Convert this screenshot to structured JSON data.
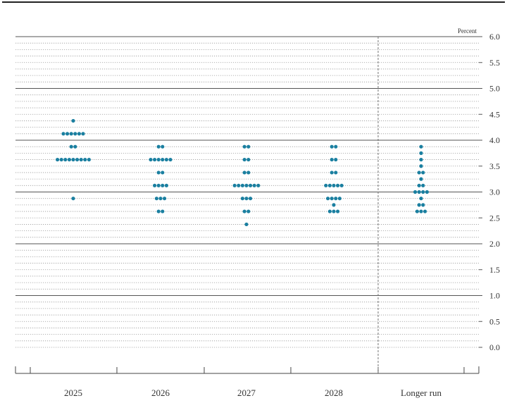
{
  "chart_data": {
    "type": "scatter",
    "subtype": "dot-plot",
    "unit_label": "Percent",
    "categories": [
      "2025",
      "2026",
      "2027",
      "2028",
      "Longer run"
    ],
    "ylim": [
      0,
      6
    ],
    "y_ticks": [
      "0.0",
      "0.5",
      "1.0",
      "1.5",
      "2.0",
      "2.5",
      "3.0",
      "3.5",
      "4.0",
      "4.5",
      "5.0",
      "5.5",
      "6.0"
    ],
    "major_gridlines": [
      1,
      2,
      3,
      4,
      5,
      6
    ],
    "minor_gridlines": "dotted every 0.125",
    "separator_before": "Longer run",
    "dot_color": "#1a7fa0",
    "series": [
      {
        "category": "2025",
        "dots": [
          {
            "y": 4.375,
            "n": 1
          },
          {
            "y": 4.125,
            "n": 6
          },
          {
            "y": 3.875,
            "n": 2
          },
          {
            "y": 3.625,
            "n": 9
          },
          {
            "y": 2.875,
            "n": 1
          }
        ]
      },
      {
        "category": "2026",
        "dots": [
          {
            "y": 3.875,
            "n": 2
          },
          {
            "y": 3.625,
            "n": 6
          },
          {
            "y": 3.375,
            "n": 2
          },
          {
            "y": 3.125,
            "n": 4
          },
          {
            "y": 2.875,
            "n": 3
          },
          {
            "y": 2.625,
            "n": 2
          }
        ]
      },
      {
        "category": "2027",
        "dots": [
          {
            "y": 3.875,
            "n": 2
          },
          {
            "y": 3.625,
            "n": 2
          },
          {
            "y": 3.375,
            "n": 2
          },
          {
            "y": 3.125,
            "n": 7
          },
          {
            "y": 2.875,
            "n": 3
          },
          {
            "y": 2.625,
            "n": 2
          },
          {
            "y": 2.375,
            "n": 1
          }
        ]
      },
      {
        "category": "2028",
        "dots": [
          {
            "y": 3.875,
            "n": 2
          },
          {
            "y": 3.625,
            "n": 2
          },
          {
            "y": 3.375,
            "n": 2
          },
          {
            "y": 3.125,
            "n": 5
          },
          {
            "y": 2.875,
            "n": 4
          },
          {
            "y": 2.75,
            "n": 1
          },
          {
            "y": 2.625,
            "n": 3
          }
        ]
      },
      {
        "category": "Longer run",
        "dots": [
          {
            "y": 3.875,
            "n": 1
          },
          {
            "y": 3.75,
            "n": 1
          },
          {
            "y": 3.625,
            "n": 1
          },
          {
            "y": 3.5,
            "n": 1
          },
          {
            "y": 3.375,
            "n": 2
          },
          {
            "y": 3.25,
            "n": 1
          },
          {
            "y": 3.125,
            "n": 2
          },
          {
            "y": 3.0,
            "n": 4
          },
          {
            "y": 2.875,
            "n": 1
          },
          {
            "y": 2.75,
            "n": 2
          },
          {
            "y": 2.625,
            "n": 3
          }
        ]
      }
    ]
  }
}
